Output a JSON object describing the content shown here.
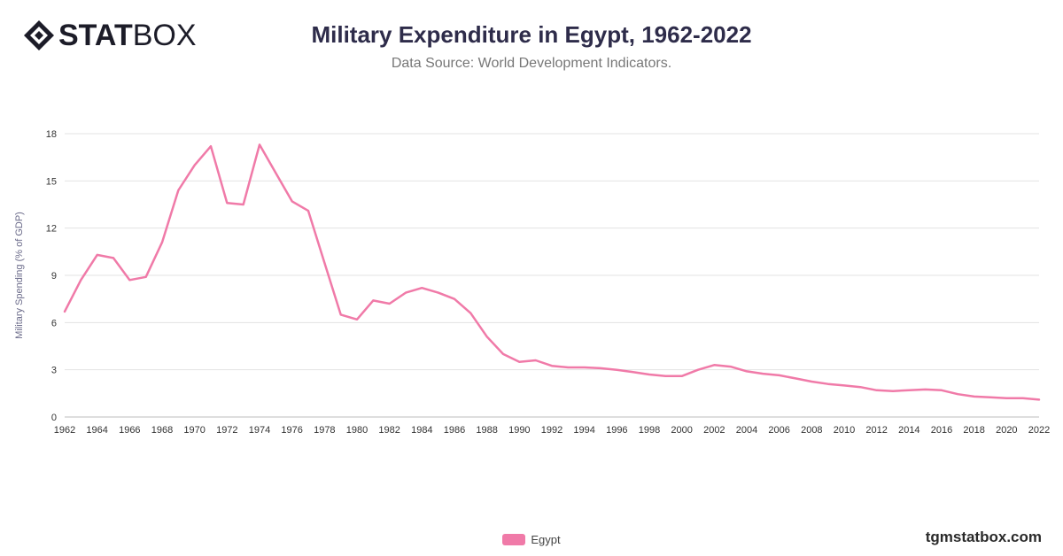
{
  "brand": {
    "logo_bold": "STAT",
    "logo_light": "BOX",
    "watermark": "tgmstatbox.com"
  },
  "header": {
    "title": "Military Expenditure in Egypt, 1962-2022",
    "subtitle": "Data Source: World Development Indicators."
  },
  "chart_data": {
    "type": "line",
    "title": "Military Expenditure in Egypt, 1962-2022",
    "subtitle": "Data Source: World Development Indicators.",
    "xlabel": "",
    "ylabel": "Military Spending (% of GDP)",
    "xlim": [
      1962,
      2022
    ],
    "ylim": [
      0,
      18
    ],
    "yticks": [
      0,
      3,
      6,
      9,
      12,
      15,
      18
    ],
    "xticks": [
      1962,
      1964,
      1966,
      1968,
      1970,
      1972,
      1974,
      1976,
      1978,
      1980,
      1982,
      1984,
      1986,
      1988,
      1990,
      1992,
      1994,
      1996,
      1998,
      2000,
      2002,
      2004,
      2006,
      2008,
      2010,
      2012,
      2014,
      2016,
      2018,
      2020,
      2022
    ],
    "grid": true,
    "legend_position": "bottom",
    "series": [
      {
        "name": "Egypt",
        "color": "#f07aa8",
        "x": [
          1962,
          1963,
          1964,
          1965,
          1966,
          1967,
          1968,
          1969,
          1970,
          1971,
          1972,
          1973,
          1974,
          1975,
          1976,
          1977,
          1978,
          1979,
          1980,
          1981,
          1982,
          1983,
          1984,
          1985,
          1986,
          1987,
          1988,
          1989,
          1990,
          1991,
          1992,
          1993,
          1994,
          1995,
          1996,
          1997,
          1998,
          1999,
          2000,
          2001,
          2002,
          2003,
          2004,
          2005,
          2006,
          2007,
          2008,
          2009,
          2010,
          2011,
          2012,
          2013,
          2014,
          2015,
          2016,
          2017,
          2018,
          2019,
          2020,
          2021,
          2022
        ],
        "values": [
          6.7,
          8.7,
          10.3,
          10.1,
          8.7,
          8.9,
          11.1,
          14.4,
          16.0,
          17.2,
          13.6,
          13.5,
          17.3,
          15.5,
          13.7,
          13.1,
          9.8,
          6.5,
          6.2,
          7.4,
          7.2,
          7.9,
          8.2,
          7.9,
          7.5,
          6.6,
          5.1,
          4.0,
          3.5,
          3.6,
          3.25,
          3.15,
          3.15,
          3.1,
          3.0,
          2.85,
          2.7,
          2.6,
          2.6,
          3.0,
          3.3,
          3.2,
          2.9,
          2.75,
          2.65,
          2.45,
          2.25,
          2.1,
          2.0,
          1.9,
          1.7,
          1.65,
          1.7,
          1.75,
          1.7,
          1.45,
          1.3,
          1.25,
          1.2,
          1.2,
          1.1
        ]
      }
    ]
  }
}
